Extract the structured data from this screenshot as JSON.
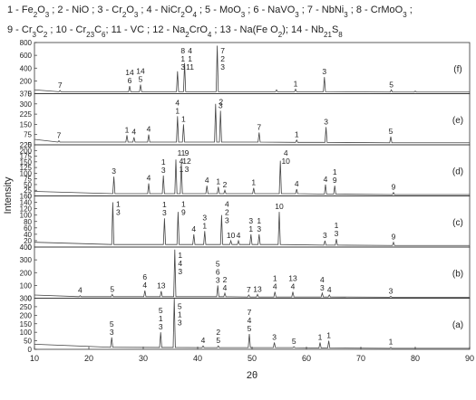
{
  "legend_lines": [
    "1 - Fe2O3 ; 2 - NiO ; 3 - Cr2O3 ; 4 - NiCr2O4 ; 5 - MoO3 ; 6 - NaVO3 ; 7 - NbNi3 ; 8 - CrMoO3 ;",
    "9 - Cr3C2 ; 10 - Cr23C6; 11 - VC ; 12 - Na2CrO4 ; 13 - Na(Fe O2); 14 - Nb21S8"
  ],
  "ylabel": "Intensity",
  "chart_data": [
    {
      "type": "line",
      "panel_label": "(f)",
      "color": "#444444",
      "xlim": [
        10,
        90
      ],
      "ylim": [
        0,
        800
      ],
      "yticks": [
        0,
        200,
        400,
        600,
        800
      ],
      "x": [
        10,
        14.5,
        14.7,
        14.9,
        27.3,
        27.5,
        27.7,
        29.3,
        29.5,
        29.7,
        36.1,
        36.3,
        36.5,
        37.4,
        37.6,
        37.8,
        43.4,
        43.6,
        43.8,
        54.3,
        54.5,
        54.7,
        57.8,
        58.0,
        58.2,
        63.1,
        63.3,
        63.5,
        75.4,
        75.6,
        75.8,
        79.8,
        80,
        80.2,
        90
      ],
      "values": [
        60,
        30,
        50,
        30,
        30,
        120,
        30,
        30,
        140,
        30,
        30,
        350,
        30,
        30,
        480,
        30,
        30,
        750,
        30,
        30,
        60,
        30,
        30,
        70,
        30,
        30,
        260,
        30,
        25,
        60,
        25,
        25,
        40,
        25,
        25
      ],
      "annotations": [
        {
          "x": 14.7,
          "lines": [
            "7"
          ]
        },
        {
          "x": 27.5,
          "lines": [
            "14",
            "6"
          ]
        },
        {
          "x": 29.5,
          "lines": [
            "14",
            "5"
          ]
        },
        {
          "x": 36.3,
          "lines": [
            "8",
            "1",
            "3"
          ]
        },
        {
          "x": 37.6,
          "lines": [
            "4",
            "1",
            "11"
          ]
        },
        {
          "x": 43.6,
          "lines": [
            "7",
            "2",
            "3"
          ]
        },
        {
          "x": 58.0,
          "lines": [
            "1"
          ]
        },
        {
          "x": 63.3,
          "lines": [
            "3"
          ]
        },
        {
          "x": 75.6,
          "lines": [
            "5"
          ]
        }
      ]
    },
    {
      "type": "line",
      "panel_label": "(e)",
      "color": "#444444",
      "xlim": [
        10,
        90
      ],
      "ylim": [
        0,
        375
      ],
      "yticks": [
        0,
        75,
        150,
        225,
        300,
        375
      ],
      "x": [
        10,
        14.3,
        14.5,
        14.7,
        26.8,
        27,
        27.2,
        28.1,
        28.3,
        28.5,
        30.8,
        31,
        31.2,
        36.1,
        36.3,
        36.5,
        37.2,
        37.4,
        37.6,
        43.1,
        43.3,
        43.5,
        44.0,
        44.2,
        44.4,
        51.1,
        51.3,
        51.5,
        58.0,
        58.2,
        58.4,
        63.4,
        63.6,
        63.8,
        75.3,
        75.5,
        75.7,
        90
      ],
      "values": [
        40,
        20,
        30,
        20,
        20,
        70,
        20,
        20,
        55,
        20,
        20,
        75,
        20,
        20,
        210,
        20,
        20,
        150,
        20,
        20,
        300,
        20,
        20,
        250,
        20,
        20,
        90,
        20,
        18,
        35,
        18,
        18,
        130,
        18,
        15,
        60,
        15,
        15
      ],
      "annotations": [
        {
          "x": 14.5,
          "lines": [
            "7"
          ]
        },
        {
          "x": 27,
          "lines": [
            "1"
          ]
        },
        {
          "x": 28.3,
          "lines": [
            "4"
          ]
        },
        {
          "x": 31,
          "lines": [
            "4"
          ]
        },
        {
          "x": 36.3,
          "lines": [
            "4",
            "1"
          ]
        },
        {
          "x": 37.4,
          "lines": [
            "1"
          ]
        },
        {
          "x": 43.3,
          "lines": [
            "2"
          ]
        },
        {
          "x": 44.2,
          "lines": [
            "3"
          ]
        },
        {
          "x": 51.3,
          "lines": [
            "7"
          ]
        },
        {
          "x": 58.2,
          "lines": [
            "1"
          ]
        },
        {
          "x": 63.6,
          "lines": [
            "3"
          ]
        },
        {
          "x": 75.5,
          "lines": [
            "5"
          ]
        }
      ]
    },
    {
      "type": "line",
      "panel_label": "(d)",
      "color": "#444444",
      "xlim": [
        10,
        90
      ],
      "ylim": [
        0,
        225
      ],
      "yticks": [
        0,
        25,
        50,
        75,
        100,
        125,
        150,
        175,
        200,
        225
      ],
      "x": [
        10,
        24.4,
        24.6,
        24.8,
        30.8,
        31.0,
        31.2,
        33.5,
        33.7,
        33.9,
        35.8,
        36.0,
        36.2,
        36.8,
        37.0,
        37.2,
        41.5,
        41.7,
        41.9,
        43.6,
        43.8,
        44.0,
        44.8,
        45.0,
        45.2,
        50.1,
        50.3,
        50.5,
        55.0,
        55.2,
        55.4,
        58.0,
        58.2,
        58.4,
        63.3,
        63.5,
        63.7,
        65.0,
        65.2,
        65.4,
        75.8,
        76,
        76.2,
        90
      ],
      "values": [
        20,
        10,
        85,
        10,
        10,
        55,
        10,
        10,
        90,
        10,
        10,
        160,
        10,
        10,
        145,
        10,
        10,
        45,
        10,
        10,
        40,
        10,
        10,
        25,
        10,
        10,
        35,
        10,
        10,
        155,
        10,
        10,
        30,
        10,
        8,
        50,
        8,
        8,
        45,
        8,
        6,
        15,
        6,
        6
      ],
      "annotations": [
        {
          "x": 24.6,
          "lines": [
            "3"
          ]
        },
        {
          "x": 31.0,
          "lines": [
            "4"
          ]
        },
        {
          "x": 33.7,
          "lines": [
            "1",
            "3"
          ]
        },
        {
          "x": 36.0,
          "lines": [
            "11",
            "4",
            "1"
          ]
        },
        {
          "x": 37.0,
          "lines": [
            "9",
            "12",
            "3"
          ]
        },
        {
          "x": 41.7,
          "lines": [
            "4"
          ]
        },
        {
          "x": 43.8,
          "lines": [
            "1"
          ]
        },
        {
          "x": 45.0,
          "lines": [
            "2"
          ]
        },
        {
          "x": 50.3,
          "lines": [
            "1"
          ]
        },
        {
          "x": 55.2,
          "lines": [
            "4",
            "10"
          ]
        },
        {
          "x": 58.2,
          "lines": [
            "4"
          ]
        },
        {
          "x": 63.5,
          "lines": [
            "4"
          ]
        },
        {
          "x": 65.2,
          "lines": [
            "1",
            "9"
          ]
        },
        {
          "x": 76,
          "lines": [
            "9"
          ]
        }
      ]
    },
    {
      "type": "line",
      "panel_label": "(c)",
      "color": "#444444",
      "xlim": [
        10,
        90
      ],
      "ylim": [
        0,
        160
      ],
      "yticks": [
        0,
        20,
        40,
        60,
        80,
        100,
        120,
        140,
        160
      ],
      "x": [
        10,
        24.2,
        24.4,
        24.6,
        33.7,
        33.9,
        34.1,
        36.2,
        36.4,
        36.6,
        39.1,
        39.3,
        39.5,
        41.1,
        41.3,
        41.5,
        44.2,
        44.4,
        44.6,
        45.9,
        46.1,
        46.3,
        47.3,
        47.5,
        47.7,
        49.6,
        49.8,
        50.0,
        51.1,
        51.3,
        51.5,
        54.8,
        55.0,
        55.2,
        63.2,
        63.4,
        63.6,
        65.3,
        65.5,
        65.7,
        75.8,
        76,
        76.2,
        90
      ],
      "values": [
        15,
        8,
        140,
        8,
        8,
        90,
        8,
        8,
        110,
        8,
        8,
        40,
        8,
        8,
        50,
        8,
        8,
        100,
        8,
        8,
        20,
        8,
        8,
        20,
        8,
        8,
        40,
        8,
        8,
        40,
        8,
        8,
        110,
        8,
        6,
        20,
        6,
        6,
        25,
        6,
        5,
        15,
        5,
        5
      ],
      "annotations": [
        {
          "x": 24.4,
          "lines": [
            "1",
            "3"
          ]
        },
        {
          "x": 33.9,
          "lines": [
            "1",
            "3"
          ]
        },
        {
          "x": 36.4,
          "lines": [
            "1",
            "9"
          ]
        },
        {
          "x": 39.3,
          "lines": [
            "4"
          ]
        },
        {
          "x": 41.3,
          "lines": [
            "3",
            "1"
          ]
        },
        {
          "x": 44.4,
          "lines": [
            "4",
            "2",
            "3"
          ]
        },
        {
          "x": 46.1,
          "lines": [
            "10"
          ]
        },
        {
          "x": 47.5,
          "lines": [
            "4"
          ]
        },
        {
          "x": 49.8,
          "lines": [
            "3",
            "1"
          ]
        },
        {
          "x": 51.3,
          "lines": [
            "1",
            "3"
          ]
        },
        {
          "x": 55.0,
          "lines": [
            "10"
          ]
        },
        {
          "x": 63.4,
          "lines": [
            "3"
          ]
        },
        {
          "x": 65.5,
          "lines": [
            "1",
            "3"
          ]
        },
        {
          "x": 76,
          "lines": [
            "9"
          ]
        }
      ]
    },
    {
      "type": "line",
      "panel_label": "(b)",
      "color": "#444444",
      "xlim": [
        10,
        90
      ],
      "ylim": [
        0,
        400
      ],
      "yticks": [
        0,
        100,
        200,
        300,
        400
      ],
      "x": [
        10,
        18.2,
        18.4,
        18.6,
        24.1,
        24.3,
        24.5,
        30.1,
        30.3,
        30.5,
        33.1,
        33.3,
        33.5,
        35.6,
        35.8,
        36.0,
        43.5,
        43.7,
        43.9,
        44.8,
        45.0,
        45.2,
        49.2,
        49.4,
        49.6,
        50.8,
        51,
        51.2,
        54.0,
        54.2,
        54.4,
        57.3,
        57.5,
        57.7,
        62.7,
        62.9,
        63.1,
        64.0,
        64.2,
        64.4,
        75.3,
        75.5,
        75.7,
        90
      ],
      "values": [
        25,
        12,
        20,
        12,
        12,
        30,
        12,
        12,
        60,
        12,
        12,
        55,
        12,
        12,
        380,
        12,
        12,
        100,
        12,
        12,
        40,
        12,
        10,
        25,
        10,
        10,
        30,
        10,
        10,
        50,
        10,
        10,
        50,
        10,
        10,
        40,
        10,
        10,
        25,
        10,
        8,
        15,
        8,
        8
      ],
      "annotations": [
        {
          "x": 18.4,
          "lines": [
            "4"
          ]
        },
        {
          "x": 24.3,
          "lines": [
            "5"
          ]
        },
        {
          "x": 30.3,
          "lines": [
            "6",
            "4"
          ]
        },
        {
          "x": 33.3,
          "lines": [
            "13"
          ]
        },
        {
          "x": 35.8,
          "lines": [
            "1",
            "4",
            "3"
          ]
        },
        {
          "x": 43.7,
          "lines": [
            "5",
            "6",
            "3"
          ]
        },
        {
          "x": 45.0,
          "lines": [
            "2",
            "4"
          ]
        },
        {
          "x": 49.4,
          "lines": [
            "7"
          ]
        },
        {
          "x": 51,
          "lines": [
            "13"
          ]
        },
        {
          "x": 54.2,
          "lines": [
            "1",
            "4"
          ]
        },
        {
          "x": 57.5,
          "lines": [
            "13",
            "4"
          ]
        },
        {
          "x": 62.9,
          "lines": [
            "4",
            "3"
          ]
        },
        {
          "x": 64.2,
          "lines": [
            "4"
          ]
        },
        {
          "x": 75.5,
          "lines": [
            "3"
          ]
        }
      ]
    },
    {
      "type": "line",
      "panel_label": "(a)",
      "color": "#444444",
      "xlim": [
        10,
        90
      ],
      "ylim": [
        0,
        300
      ],
      "yticks": [
        0,
        50,
        100,
        150,
        200,
        250,
        300
      ],
      "xticks": [
        10,
        20,
        30,
        40,
        50,
        60,
        70,
        80,
        90
      ],
      "xlabel": "2θ",
      "x": [
        10,
        24.0,
        24.2,
        24.4,
        33.0,
        33.2,
        33.4,
        35.5,
        35.7,
        35.9,
        40.8,
        41,
        41.2,
        43.6,
        43.8,
        44,
        49.3,
        49.5,
        49.7,
        53.9,
        54.1,
        54.3,
        57.5,
        57.7,
        57.9,
        62.3,
        62.5,
        62.7,
        63.9,
        64.1,
        64.3,
        75.3,
        75.5,
        75.7,
        90
      ],
      "values": [
        30,
        12,
        70,
        12,
        11,
        100,
        11,
        11,
        300,
        11,
        10,
        20,
        10,
        10,
        20,
        10,
        10,
        90,
        10,
        10,
        40,
        10,
        10,
        15,
        10,
        8,
        40,
        8,
        8,
        50,
        8,
        6,
        12,
        6,
        6
      ],
      "annotations": [
        {
          "x": 24.2,
          "lines": [
            "5",
            "3"
          ]
        },
        {
          "x": 33.2,
          "lines": [
            "5",
            "1",
            "3"
          ]
        },
        {
          "x": 35.7,
          "lines": [
            "5",
            "1",
            "3"
          ]
        },
        {
          "x": 41,
          "lines": [
            "4"
          ]
        },
        {
          "x": 43.8,
          "lines": [
            "2",
            "5"
          ]
        },
        {
          "x": 49.5,
          "lines": [
            "7",
            "4",
            "5"
          ]
        },
        {
          "x": 54.1,
          "lines": [
            "3"
          ]
        },
        {
          "x": 57.7,
          "lines": [
            "5"
          ]
        },
        {
          "x": 62.5,
          "lines": [
            "1"
          ]
        },
        {
          "x": 64.1,
          "lines": [
            "1"
          ]
        },
        {
          "x": 75.5,
          "lines": [
            "1"
          ]
        }
      ]
    }
  ]
}
